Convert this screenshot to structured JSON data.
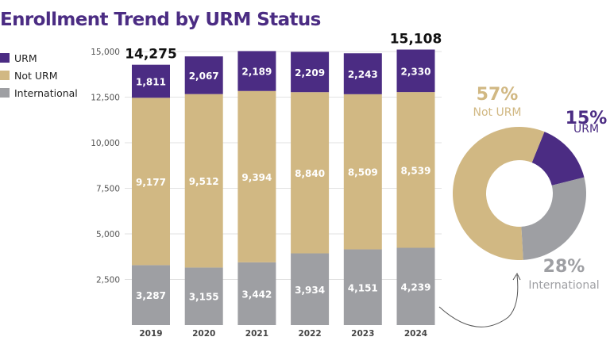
{
  "chart_data": [
    {
      "type": "bar",
      "stacked": true,
      "title": "Enrollment Trend by URM Status",
      "categories": [
        "2019",
        "2020",
        "2021",
        "2022",
        "2023",
        "2024"
      ],
      "series": [
        {
          "name": "International",
          "color": "#9e9fa3",
          "values": [
            3287,
            3155,
            3442,
            3934,
            4151,
            4239
          ],
          "labels": [
            "3,287",
            "3,155",
            "3,442",
            "3,934",
            "4,151",
            "4,239"
          ]
        },
        {
          "name": "Not URM",
          "color": "#d1b883",
          "values": [
            9177,
            9512,
            9394,
            8840,
            8509,
            8539
          ],
          "labels": [
            "9,177",
            "9,512",
            "9,394",
            "8,840",
            "8,509",
            "8,539"
          ]
        },
        {
          "name": "URM",
          "color": "#4b2c83",
          "values": [
            1811,
            2067,
            2189,
            2209,
            2243,
            2330
          ],
          "labels": [
            "1,811",
            "2,067",
            "2,189",
            "2,209",
            "2,243",
            "2,330"
          ]
        }
      ],
      "totals_shown": [
        {
          "category": "2019",
          "label": "14,275"
        },
        {
          "category": "2024",
          "label": "15,108"
        }
      ],
      "yticks": [
        "2,500",
        "5,000",
        "7,500",
        "10,000",
        "12,500",
        "15,000"
      ],
      "ytick_values": [
        2500,
        5000,
        7500,
        10000,
        12500,
        15000
      ],
      "ylim": [
        0,
        15000
      ],
      "grid": true,
      "legend": "left",
      "legend_order": [
        "URM",
        "Not URM",
        "International"
      ]
    },
    {
      "type": "pie",
      "donut": true,
      "slices": [
        {
          "name": "URM",
          "value": 15,
          "pct_label": "15%",
          "color": "#4b2c83"
        },
        {
          "name": "International",
          "value": 28,
          "pct_label": "28%",
          "color": "#9e9fa3"
        },
        {
          "name": "Not URM",
          "value": 57,
          "pct_label": "57%",
          "color": "#d1b883"
        }
      ]
    }
  ]
}
